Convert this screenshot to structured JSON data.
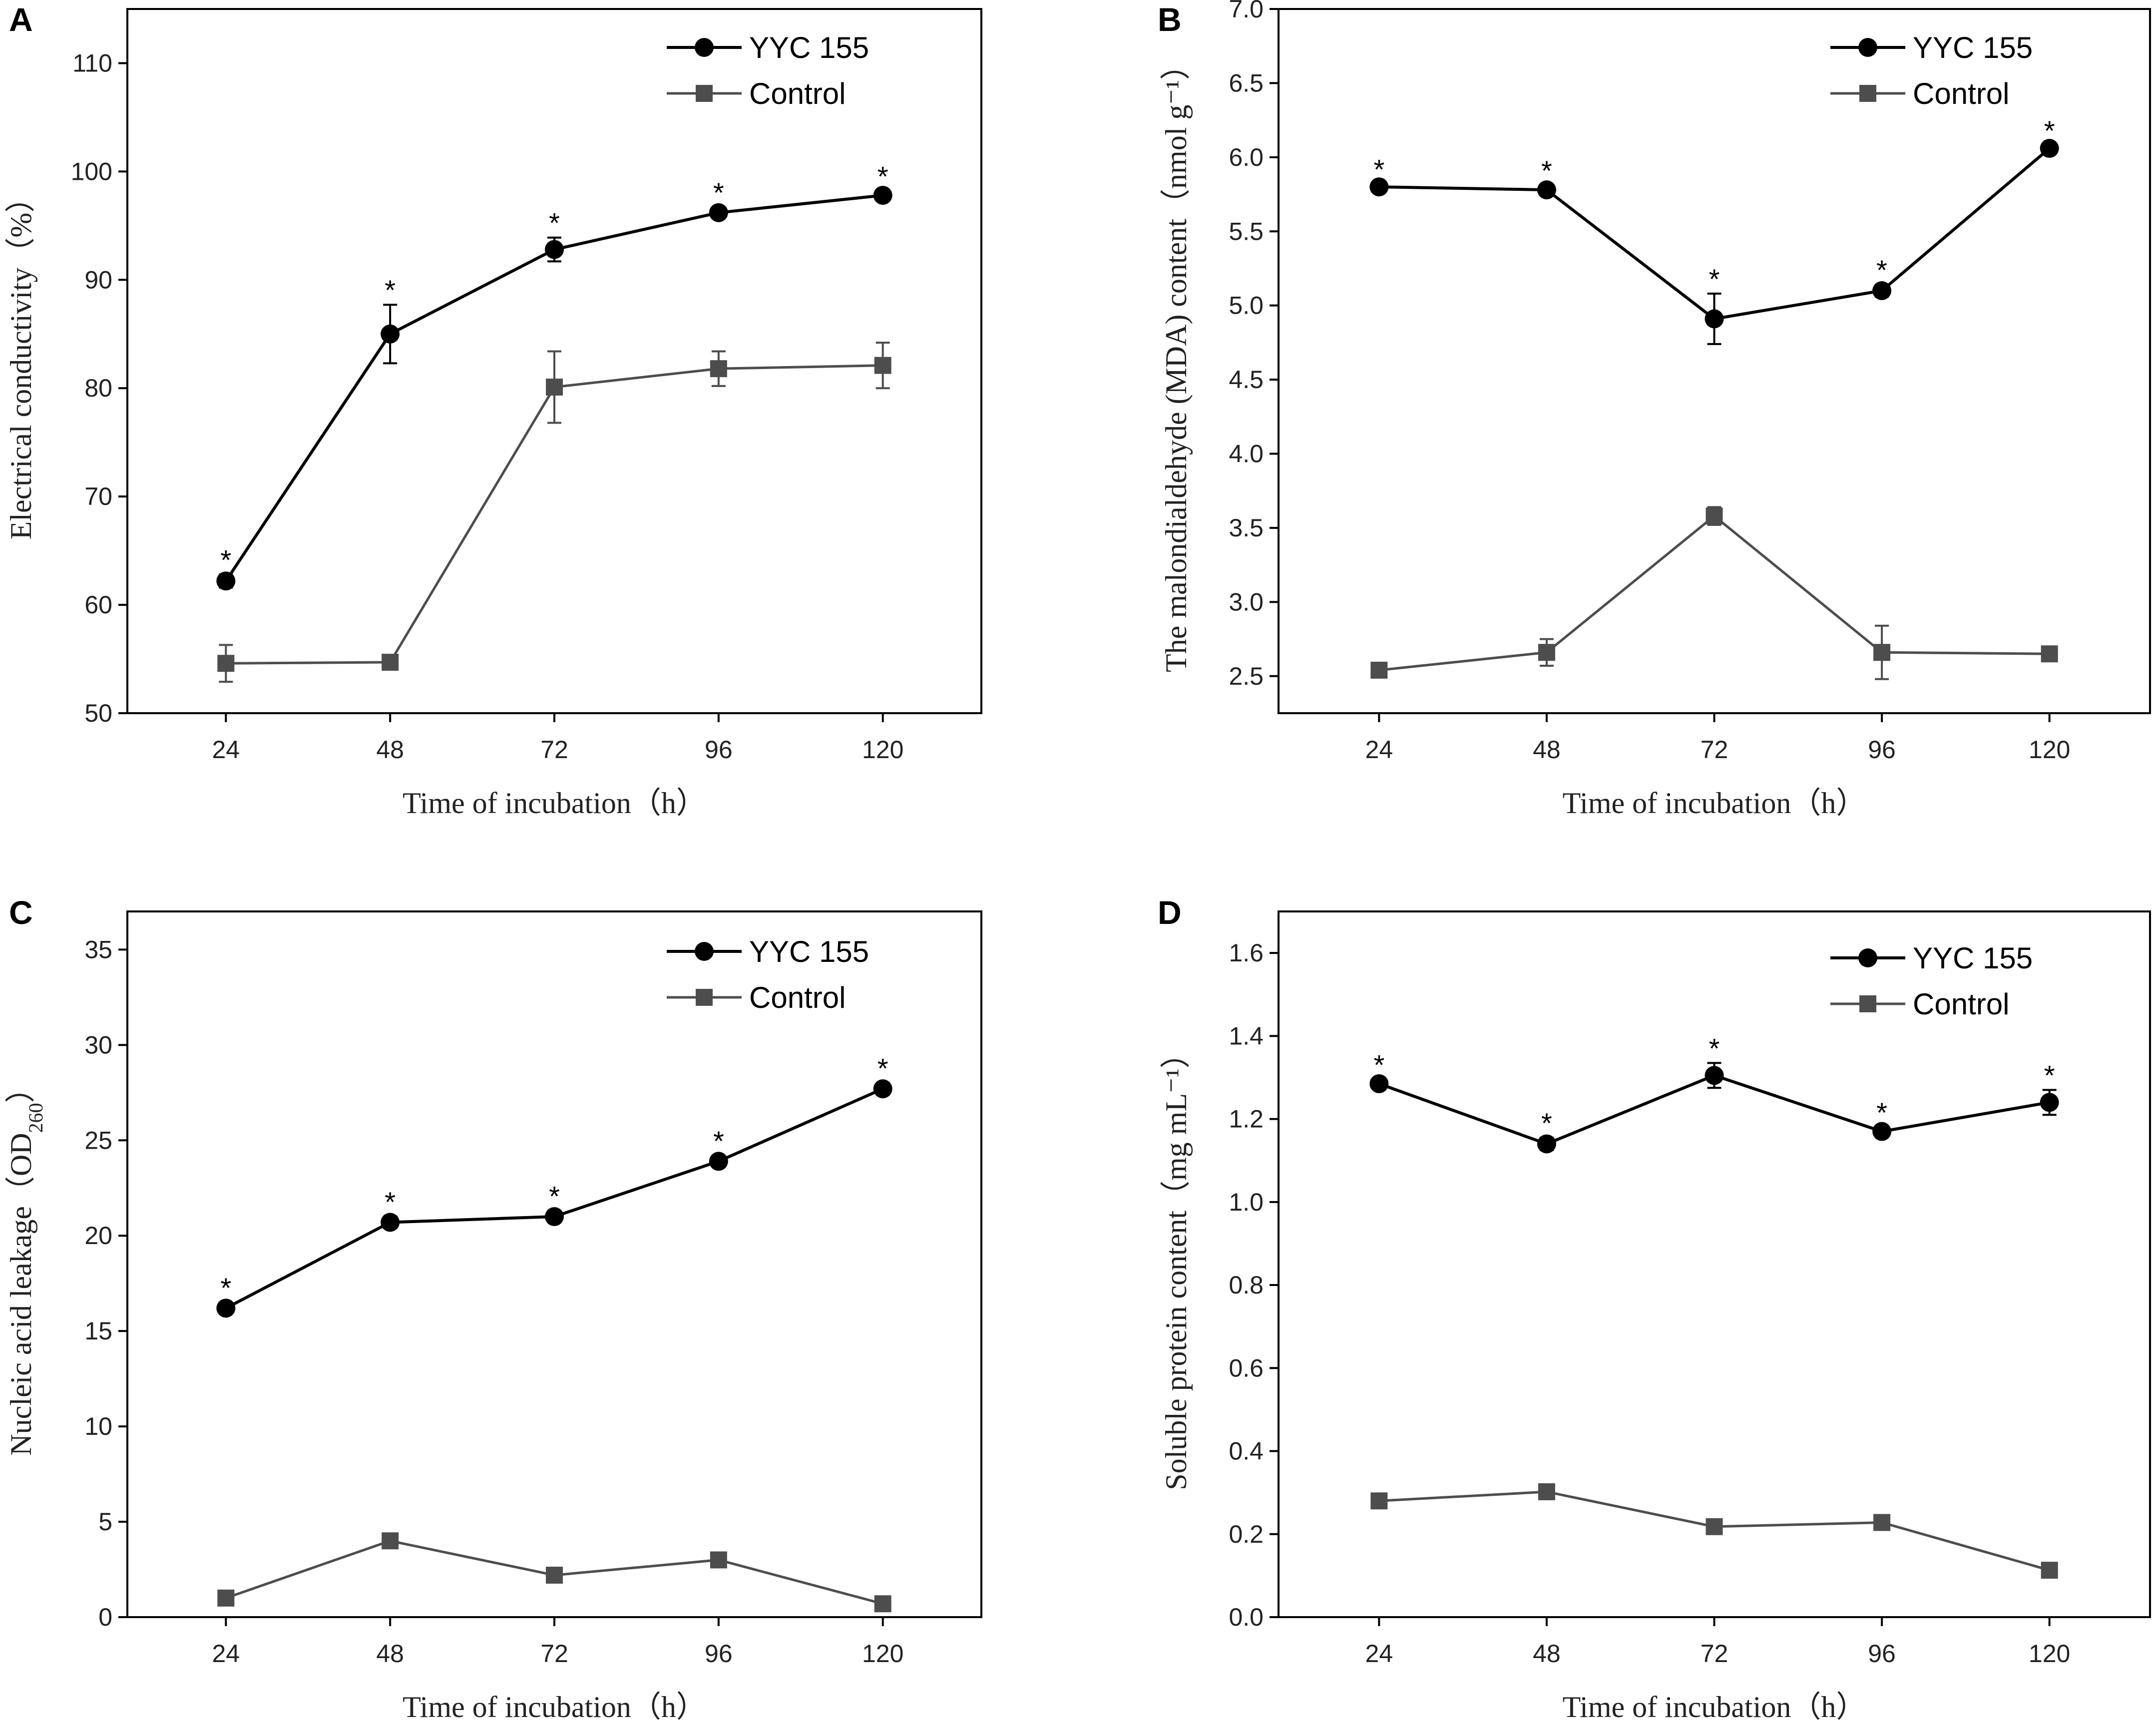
{
  "colors": {
    "yyc": "#000000",
    "control": "#4d4d4d",
    "axis": "#000000"
  },
  "legend": {
    "yyc_label": "YYC 155",
    "control_label": "Control",
    "yyc_marker": "circle",
    "control_marker": "square"
  },
  "chart_data": [
    {
      "panel": "A",
      "type": "line",
      "xlabel": "Time of incubation（h）",
      "ylabel": "Electrical conductivity（%）",
      "x": [
        24,
        48,
        72,
        96,
        120
      ],
      "xticks": [
        "24",
        "48",
        "72",
        "96",
        "120"
      ],
      "ylim": [
        50,
        115
      ],
      "yticks": [
        50,
        60,
        70,
        80,
        90,
        100,
        110
      ],
      "ytick_labels": [
        "50",
        "60",
        "70",
        "80",
        "90",
        "100",
        "110"
      ],
      "series": [
        {
          "name": "YYC 155",
          "values": [
            62.2,
            85.0,
            92.8,
            96.2,
            97.8
          ],
          "errors": [
            0.6,
            2.7,
            1.1,
            0.5,
            0.4
          ],
          "stars": [
            true,
            true,
            true,
            true,
            true
          ]
        },
        {
          "name": "Control",
          "values": [
            54.6,
            54.7,
            80.1,
            81.8,
            82.1
          ],
          "errors": [
            1.7,
            0.4,
            3.3,
            1.6,
            2.1
          ]
        }
      ]
    },
    {
      "panel": "B",
      "type": "line",
      "xlabel": "Time of incubation（h）",
      "ylabel": "The malondialdehyde (MDA) content（nmol g⁻¹）",
      "x": [
        24,
        48,
        72,
        96,
        120
      ],
      "xticks": [
        "24",
        "48",
        "72",
        "96",
        "120"
      ],
      "ylim": [
        2.25,
        7.0
      ],
      "yticks": [
        2.5,
        3.0,
        3.5,
        4.0,
        4.5,
        5.0,
        5.5,
        6.0,
        6.5,
        7.0
      ],
      "ytick_labels": [
        "2.5",
        "3.0",
        "3.5",
        "4.0",
        "4.5",
        "5.0",
        "5.5",
        "6.0",
        "6.5",
        "7.0"
      ],
      "series": [
        {
          "name": "YYC 155",
          "values": [
            5.8,
            5.78,
            4.91,
            5.1,
            6.06
          ],
          "errors": [
            0.02,
            0.03,
            0.17,
            0.04,
            0.02
          ],
          "stars": [
            true,
            true,
            true,
            true,
            true
          ]
        },
        {
          "name": "Control",
          "values": [
            2.54,
            2.66,
            3.58,
            2.66,
            2.65
          ],
          "errors": [
            0.02,
            0.09,
            0.06,
            0.18,
            0.02
          ]
        }
      ]
    },
    {
      "panel": "C",
      "type": "line",
      "xlabel": "Time of incubation（h）",
      "ylabel": "Nucleic acid leakage（OD260）",
      "x": [
        24,
        48,
        72,
        96,
        120
      ],
      "xticks": [
        "24",
        "48",
        "72",
        "96",
        "120"
      ],
      "ylim": [
        0,
        37
      ],
      "yticks": [
        0,
        5,
        10,
        15,
        20,
        25,
        30,
        35
      ],
      "ytick_labels": [
        "0",
        "5",
        "10",
        "15",
        "20",
        "25",
        "30",
        "35"
      ],
      "series": [
        {
          "name": "YYC 155",
          "values": [
            16.2,
            20.7,
            21.0,
            23.9,
            27.7
          ],
          "errors": [
            0.3,
            0.3,
            0.3,
            0.3,
            0.3
          ],
          "stars": [
            true,
            true,
            true,
            true,
            true
          ]
        },
        {
          "name": "Control",
          "values": [
            1.0,
            4.0,
            2.2,
            3.0,
            0.7
          ],
          "errors": [
            0.2,
            0.2,
            0.2,
            0.2,
            0.2
          ]
        }
      ]
    },
    {
      "panel": "D",
      "type": "line",
      "xlabel": "Time of incubation（h）",
      "ylabel": "Soluble protein content（mg mL⁻¹）",
      "x": [
        24,
        48,
        72,
        96,
        120
      ],
      "xticks": [
        "24",
        "48",
        "72",
        "96",
        "120"
      ],
      "ylim": [
        0,
        1.7
      ],
      "yticks": [
        0.0,
        0.2,
        0.4,
        0.6,
        0.8,
        1.0,
        1.2,
        1.4,
        1.6
      ],
      "ytick_labels": [
        "0.0",
        "0.2",
        "0.4",
        "0.6",
        "0.8",
        "1.0",
        "1.2",
        "1.4",
        "1.6"
      ],
      "series": [
        {
          "name": "YYC 155",
          "values": [
            1.285,
            1.14,
            1.305,
            1.17,
            1.24
          ],
          "errors": [
            0.01,
            0.015,
            0.03,
            0.01,
            0.03
          ],
          "stars": [
            true,
            true,
            true,
            true,
            true
          ]
        },
        {
          "name": "Control",
          "values": [
            0.28,
            0.302,
            0.218,
            0.228,
            0.113
          ],
          "errors": [
            0.01,
            0.01,
            0.01,
            0.01,
            0.01
          ]
        }
      ]
    }
  ]
}
